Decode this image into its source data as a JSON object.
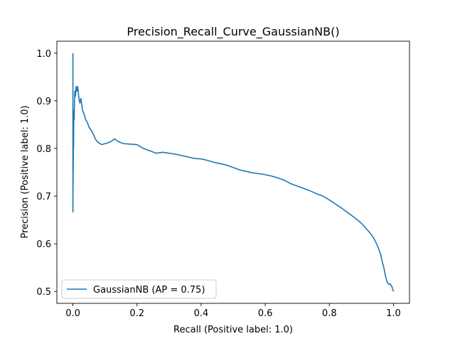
{
  "chart_data": {
    "type": "line",
    "title": "Precision_Recall_Curve_GaussianNB()",
    "xlabel": "Recall (Positive label: 1.0)",
    "ylabel": "Precision (Positive label: 1.0)",
    "xlim": [
      -0.05,
      1.05
    ],
    "ylim": [
      0.475,
      1.025
    ],
    "xticks": [
      0.0,
      0.2,
      0.4,
      0.6,
      0.8,
      1.0
    ],
    "xtick_labels": [
      "0.0",
      "0.2",
      "0.4",
      "0.6",
      "0.8",
      "1.0"
    ],
    "yticks": [
      0.5,
      0.6,
      0.7,
      0.8,
      0.9,
      1.0
    ],
    "ytick_labels": [
      "0.5",
      "0.6",
      "0.7",
      "0.8",
      "0.9",
      "1.0"
    ],
    "grid": false,
    "legend_position": "lower-left",
    "series": [
      {
        "name": "GaussianNB (AP = 0.75)",
        "color": "#1f77b4",
        "x": [
          0.0,
          0.0,
          0.001,
          0.001,
          0.002,
          0.002,
          0.003,
          0.004,
          0.005,
          0.006,
          0.008,
          0.01,
          0.012,
          0.015,
          0.018,
          0.02,
          0.022,
          0.025,
          0.028,
          0.03,
          0.033,
          0.036,
          0.04,
          0.045,
          0.05,
          0.055,
          0.06,
          0.065,
          0.07,
          0.075,
          0.08,
          0.085,
          0.09,
          0.1,
          0.11,
          0.12,
          0.13,
          0.14,
          0.15,
          0.16,
          0.18,
          0.2,
          0.22,
          0.24,
          0.26,
          0.28,
          0.3,
          0.32,
          0.34,
          0.36,
          0.38,
          0.4,
          0.42,
          0.44,
          0.46,
          0.48,
          0.5,
          0.52,
          0.54,
          0.56,
          0.58,
          0.6,
          0.62,
          0.64,
          0.66,
          0.68,
          0.7,
          0.72,
          0.74,
          0.76,
          0.78,
          0.8,
          0.82,
          0.84,
          0.86,
          0.88,
          0.9,
          0.92,
          0.93,
          0.94,
          0.95,
          0.96,
          0.965,
          0.97,
          0.975,
          0.98,
          0.985,
          0.99,
          0.995,
          1.0
        ],
        "y": [
          1.0,
          0.667,
          0.8,
          0.75,
          0.85,
          0.8,
          0.88,
          0.86,
          0.9,
          0.92,
          0.91,
          0.93,
          0.92,
          0.93,
          0.91,
          0.9,
          0.895,
          0.905,
          0.89,
          0.88,
          0.875,
          0.87,
          0.86,
          0.855,
          0.845,
          0.84,
          0.835,
          0.828,
          0.82,
          0.815,
          0.812,
          0.81,
          0.808,
          0.81,
          0.812,
          0.815,
          0.82,
          0.815,
          0.812,
          0.81,
          0.809,
          0.808,
          0.8,
          0.795,
          0.79,
          0.792,
          0.79,
          0.788,
          0.785,
          0.782,
          0.779,
          0.778,
          0.775,
          0.771,
          0.768,
          0.765,
          0.76,
          0.755,
          0.752,
          0.749,
          0.747,
          0.745,
          0.742,
          0.738,
          0.733,
          0.726,
          0.721,
          0.716,
          0.711,
          0.705,
          0.7,
          0.692,
          0.683,
          0.674,
          0.664,
          0.654,
          0.643,
          0.628,
          0.62,
          0.61,
          0.596,
          0.578,
          0.562,
          0.55,
          0.532,
          0.52,
          0.515,
          0.516,
          0.51,
          0.5
        ]
      }
    ]
  }
}
